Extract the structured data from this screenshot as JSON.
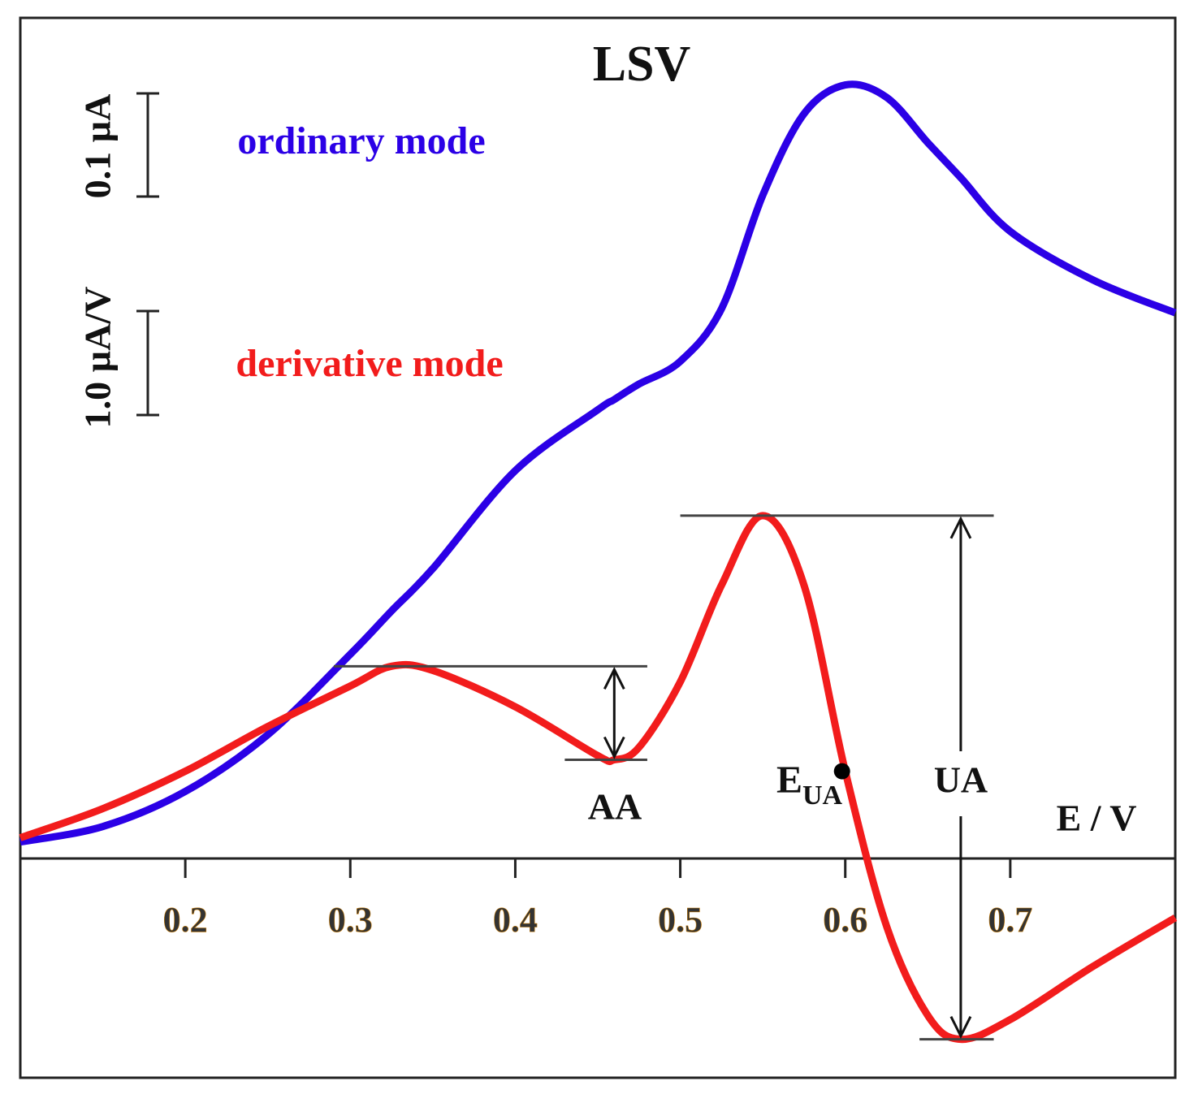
{
  "chart_data": {
    "type": "line",
    "title": "LSV",
    "x_label": "E / V",
    "xlim": [
      0.1,
      0.8
    ],
    "xticks": [
      0.2,
      0.3,
      0.4,
      0.5,
      0.6,
      0.7
    ],
    "ylim": [
      -0.2126,
      0.815
    ],
    "y2lim": [
      -2.11,
      8.09
    ],
    "x": [
      0.1,
      0.15,
      0.2,
      0.25,
      0.3,
      0.325,
      0.35,
      0.4,
      0.45,
      0.46,
      0.475,
      0.5,
      0.525,
      0.55,
      0.575,
      0.6,
      0.625,
      0.65,
      0.67,
      0.7,
      0.75,
      0.8
    ],
    "series": [
      {
        "name": "ordinary mode",
        "color": "#2b00e6",
        "axis": "y",
        "values": [
          0.016,
          0.031,
          0.065,
          0.12,
          0.198,
          0.24,
          0.281,
          0.376,
          0.435,
          0.445,
          0.46,
          0.482,
          0.533,
          0.643,
          0.722,
          0.75,
          0.738,
          0.694,
          0.66,
          0.608,
          0.561,
          0.529
        ]
      },
      {
        "name": "derivative mode",
        "color": "#f21c1c",
        "axis": "y2",
        "values": [
          0.2,
          0.48,
          0.84,
          1.27,
          1.66,
          1.85,
          1.81,
          1.46,
          0.99,
          0.95,
          1.07,
          1.7,
          2.63,
          3.3,
          2.63,
          0.84,
          -0.65,
          -1.51,
          -1.74,
          -1.55,
          -1.04,
          -0.57
        ]
      }
    ],
    "scale_bars": [
      {
        "label": "0.1 µA",
        "value": 0.1,
        "axis": "y"
      },
      {
        "label": "1.0 µA/V",
        "value": 1.0,
        "axis": "y2"
      }
    ],
    "annotations": {
      "aa": "AA",
      "ua": "UA",
      "e_ua": "E",
      "e_ua_sub": "UA"
    }
  }
}
